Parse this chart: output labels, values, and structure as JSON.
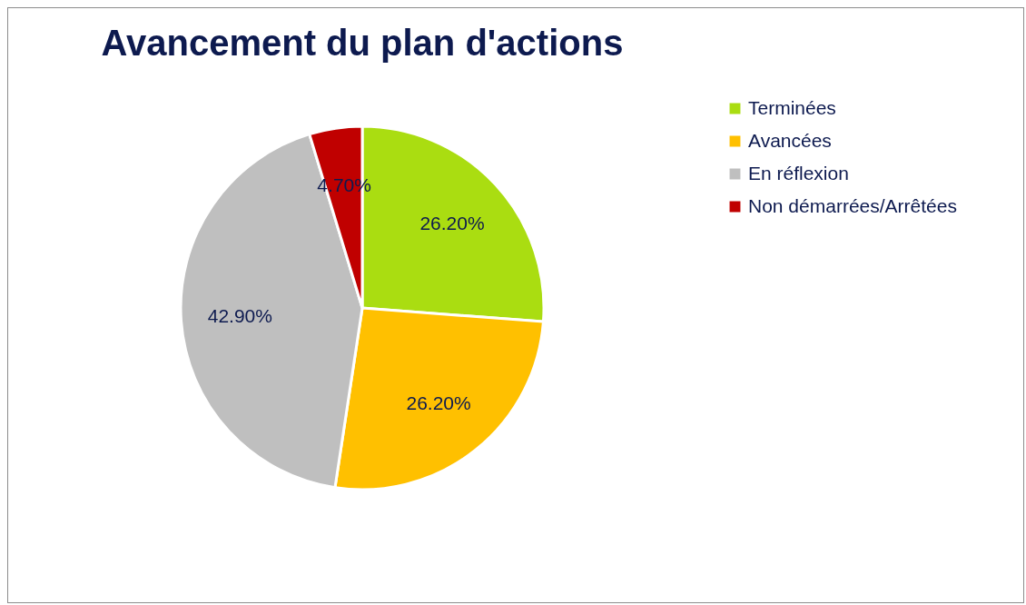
{
  "chart_data": {
    "type": "pie",
    "title": "Avancement du plan d'actions",
    "categories": [
      "Terminées",
      "Avancées",
      "En réflexion",
      "Non démarrées/Arrêtées"
    ],
    "values": [
      26.2,
      26.2,
      42.9,
      4.7
    ],
    "value_labels": [
      "26.20%",
      "26.20%",
      "42.90%",
      "4.70%"
    ],
    "colors": [
      "#aadd11",
      "#ffc000",
      "#bfbfbf",
      "#c00000"
    ],
    "legend": "right"
  }
}
